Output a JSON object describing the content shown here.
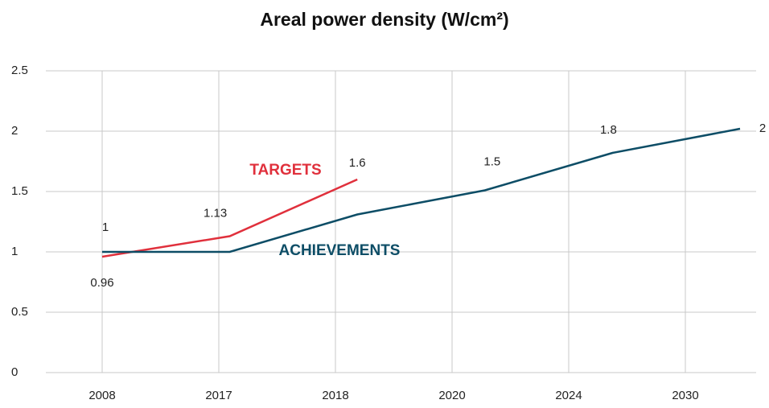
{
  "chart_data": {
    "type": "line",
    "title": "Areal power density (W/cm²)",
    "categories": [
      "2008",
      "2017",
      "2018",
      "2020",
      "2024",
      "2030"
    ],
    "series": [
      {
        "name": "TARGETS",
        "color": "#e0303c",
        "values": [
          0.96,
          1.13,
          1.6,
          null,
          null,
          null
        ],
        "value_labels": [
          "0.96",
          "1.13",
          "1.6",
          null,
          null,
          null
        ]
      },
      {
        "name": "ACHIEVEMENTS",
        "color": "#0d4d66",
        "values": [
          1,
          1,
          1.31,
          1.51,
          1.82,
          2.02
        ],
        "value_labels": [
          "1",
          null,
          null,
          "1.5",
          "1.8",
          "2"
        ]
      }
    ],
    "ylim": [
      0,
      2.5
    ],
    "yticks": [
      0,
      0.5,
      1,
      1.5,
      2,
      2.5
    ],
    "grid": true
  }
}
